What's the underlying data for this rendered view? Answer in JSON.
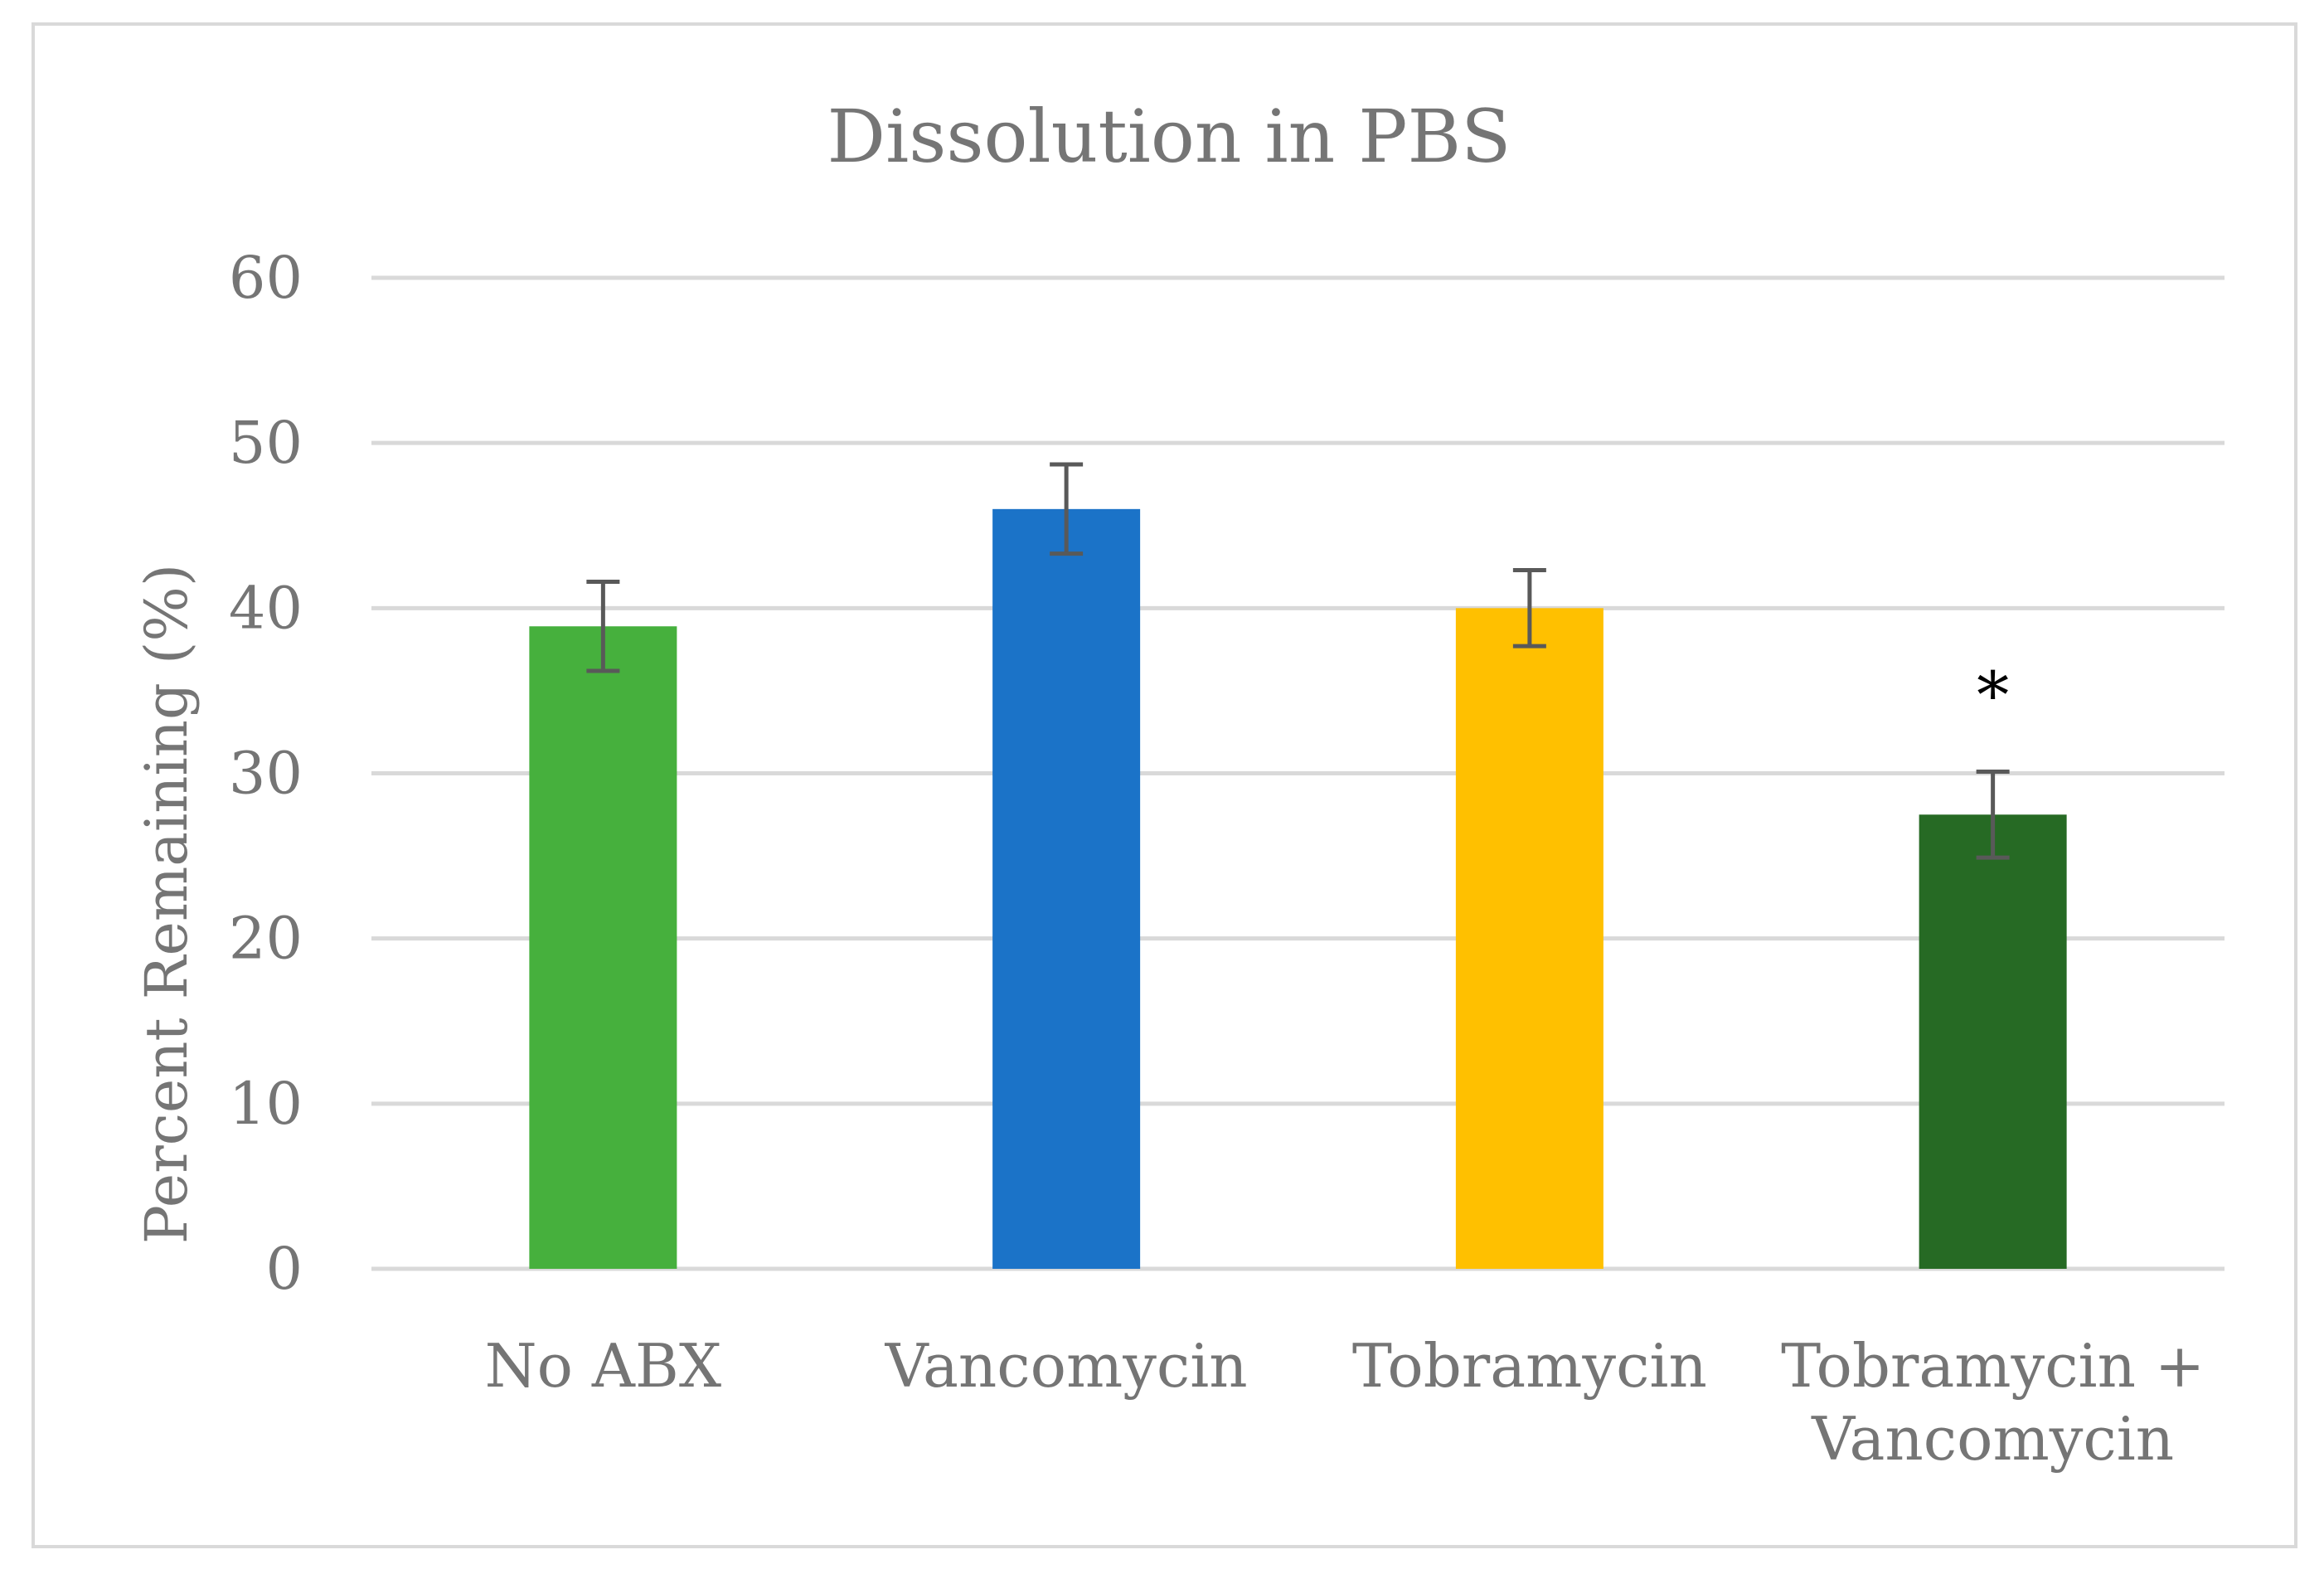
{
  "chart_data": {
    "type": "bar",
    "title": "Dissolution in PBS",
    "xlabel": "",
    "ylabel": "Percent Remaining (%)",
    "ylim": [
      0,
      60
    ],
    "yticks": [
      0,
      10,
      20,
      30,
      40,
      50,
      60
    ],
    "grid": true,
    "legend": "none",
    "categories": [
      [
        "No ABX"
      ],
      [
        "Vancomycin"
      ],
      [
        "Tobramycin"
      ],
      [
        "Tobramycin +",
        "Vancomycin"
      ]
    ],
    "values": [
      38.9,
      46.0,
      40.0,
      27.5
    ],
    "error": [
      2.7,
      2.7,
      2.3,
      2.6
    ],
    "colors": [
      "#46b03d",
      "#1b73c8",
      "#ffc000",
      "#266a24"
    ],
    "annotations": [
      {
        "category_index": 3,
        "text": "*"
      }
    ]
  }
}
